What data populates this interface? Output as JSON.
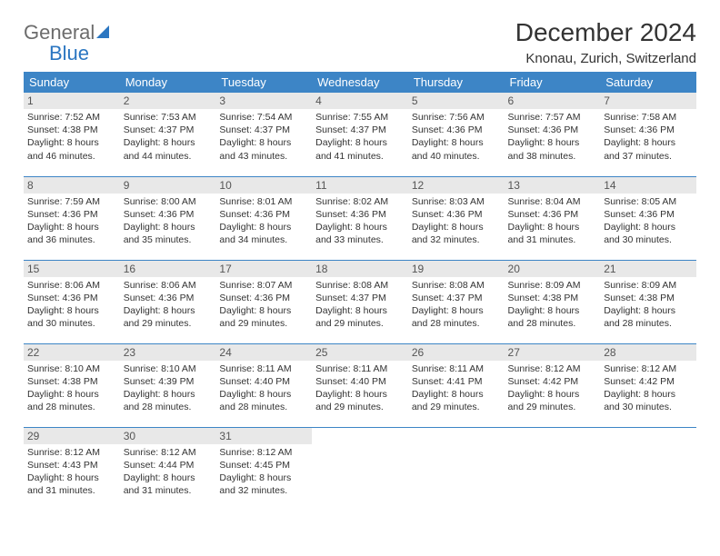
{
  "logo": {
    "word1": "General",
    "word2": "Blue"
  },
  "header": {
    "title": "December 2024",
    "location": "Knonau, Zurich, Switzerland"
  },
  "calendar": {
    "columns": [
      "Sunday",
      "Monday",
      "Tuesday",
      "Wednesday",
      "Thursday",
      "Friday",
      "Saturday"
    ],
    "header_bg": "#3d85c6",
    "header_fg": "#ffffff",
    "rule_color": "#3d85c6",
    "daynum_bg": "#e8e8e8",
    "text_color": "#333333",
    "weeks": [
      [
        {
          "n": "1",
          "sr": "7:52 AM",
          "ss": "4:38 PM",
          "dl": "8 hours and 46 minutes."
        },
        {
          "n": "2",
          "sr": "7:53 AM",
          "ss": "4:37 PM",
          "dl": "8 hours and 44 minutes."
        },
        {
          "n": "3",
          "sr": "7:54 AM",
          "ss": "4:37 PM",
          "dl": "8 hours and 43 minutes."
        },
        {
          "n": "4",
          "sr": "7:55 AM",
          "ss": "4:37 PM",
          "dl": "8 hours and 41 minutes."
        },
        {
          "n": "5",
          "sr": "7:56 AM",
          "ss": "4:36 PM",
          "dl": "8 hours and 40 minutes."
        },
        {
          "n": "6",
          "sr": "7:57 AM",
          "ss": "4:36 PM",
          "dl": "8 hours and 38 minutes."
        },
        {
          "n": "7",
          "sr": "7:58 AM",
          "ss": "4:36 PM",
          "dl": "8 hours and 37 minutes."
        }
      ],
      [
        {
          "n": "8",
          "sr": "7:59 AM",
          "ss": "4:36 PM",
          "dl": "8 hours and 36 minutes."
        },
        {
          "n": "9",
          "sr": "8:00 AM",
          "ss": "4:36 PM",
          "dl": "8 hours and 35 minutes."
        },
        {
          "n": "10",
          "sr": "8:01 AM",
          "ss": "4:36 PM",
          "dl": "8 hours and 34 minutes."
        },
        {
          "n": "11",
          "sr": "8:02 AM",
          "ss": "4:36 PM",
          "dl": "8 hours and 33 minutes."
        },
        {
          "n": "12",
          "sr": "8:03 AM",
          "ss": "4:36 PM",
          "dl": "8 hours and 32 minutes."
        },
        {
          "n": "13",
          "sr": "8:04 AM",
          "ss": "4:36 PM",
          "dl": "8 hours and 31 minutes."
        },
        {
          "n": "14",
          "sr": "8:05 AM",
          "ss": "4:36 PM",
          "dl": "8 hours and 30 minutes."
        }
      ],
      [
        {
          "n": "15",
          "sr": "8:06 AM",
          "ss": "4:36 PM",
          "dl": "8 hours and 30 minutes."
        },
        {
          "n": "16",
          "sr": "8:06 AM",
          "ss": "4:36 PM",
          "dl": "8 hours and 29 minutes."
        },
        {
          "n": "17",
          "sr": "8:07 AM",
          "ss": "4:36 PM",
          "dl": "8 hours and 29 minutes."
        },
        {
          "n": "18",
          "sr": "8:08 AM",
          "ss": "4:37 PM",
          "dl": "8 hours and 29 minutes."
        },
        {
          "n": "19",
          "sr": "8:08 AM",
          "ss": "4:37 PM",
          "dl": "8 hours and 28 minutes."
        },
        {
          "n": "20",
          "sr": "8:09 AM",
          "ss": "4:38 PM",
          "dl": "8 hours and 28 minutes."
        },
        {
          "n": "21",
          "sr": "8:09 AM",
          "ss": "4:38 PM",
          "dl": "8 hours and 28 minutes."
        }
      ],
      [
        {
          "n": "22",
          "sr": "8:10 AM",
          "ss": "4:38 PM",
          "dl": "8 hours and 28 minutes."
        },
        {
          "n": "23",
          "sr": "8:10 AM",
          "ss": "4:39 PM",
          "dl": "8 hours and 28 minutes."
        },
        {
          "n": "24",
          "sr": "8:11 AM",
          "ss": "4:40 PM",
          "dl": "8 hours and 28 minutes."
        },
        {
          "n": "25",
          "sr": "8:11 AM",
          "ss": "4:40 PM",
          "dl": "8 hours and 29 minutes."
        },
        {
          "n": "26",
          "sr": "8:11 AM",
          "ss": "4:41 PM",
          "dl": "8 hours and 29 minutes."
        },
        {
          "n": "27",
          "sr": "8:12 AM",
          "ss": "4:42 PM",
          "dl": "8 hours and 29 minutes."
        },
        {
          "n": "28",
          "sr": "8:12 AM",
          "ss": "4:42 PM",
          "dl": "8 hours and 30 minutes."
        }
      ],
      [
        {
          "n": "29",
          "sr": "8:12 AM",
          "ss": "4:43 PM",
          "dl": "8 hours and 31 minutes."
        },
        {
          "n": "30",
          "sr": "8:12 AM",
          "ss": "4:44 PM",
          "dl": "8 hours and 31 minutes."
        },
        {
          "n": "31",
          "sr": "8:12 AM",
          "ss": "4:45 PM",
          "dl": "8 hours and 32 minutes."
        },
        null,
        null,
        null,
        null
      ]
    ],
    "labels": {
      "sunrise": "Sunrise:",
      "sunset": "Sunset:",
      "daylight": "Daylight:"
    }
  }
}
